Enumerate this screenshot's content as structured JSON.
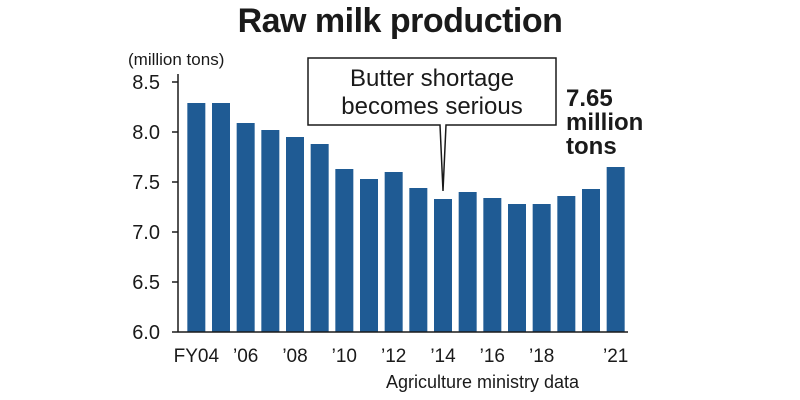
{
  "title": "Raw milk production",
  "unit_label": "(million tons)",
  "source": "Agriculture ministry data",
  "colors": {
    "bar": "#1f5b94",
    "axis": "#1a1a1a",
    "text": "#1a1a1a"
  },
  "annotation": {
    "lines": [
      "Butter shortage",
      "becomes serious"
    ],
    "category": "FY14"
  },
  "highlight": {
    "lines": [
      "7.65",
      "million",
      "tons"
    ],
    "category": "FY21"
  },
  "chart_data": {
    "type": "bar",
    "categories": [
      "FY04",
      "FY05",
      "FY06",
      "FY07",
      "FY08",
      "FY09",
      "FY10",
      "FY11",
      "FY12",
      "FY13",
      "FY14",
      "FY15",
      "FY16",
      "FY17",
      "FY18",
      "FY19",
      "FY20",
      "FY21"
    ],
    "values": [
      8.29,
      8.29,
      8.09,
      8.02,
      7.95,
      7.88,
      7.63,
      7.53,
      7.6,
      7.44,
      7.33,
      7.4,
      7.34,
      7.28,
      7.28,
      7.36,
      7.43,
      7.65
    ],
    "tick_labels": [
      "FY04",
      "",
      "’06",
      "",
      "’08",
      "",
      "’10",
      "",
      "’12",
      "",
      "’14",
      "",
      "’16",
      "",
      "’18",
      "",
      "",
      "’21"
    ],
    "y_ticks": [
      "6.0",
      "6.5",
      "7.0",
      "7.5",
      "8.0",
      "8.5"
    ],
    "ylim": [
      6.0,
      8.5
    ],
    "ylabel": "(million tons)",
    "xlabel": "",
    "grid": false
  }
}
